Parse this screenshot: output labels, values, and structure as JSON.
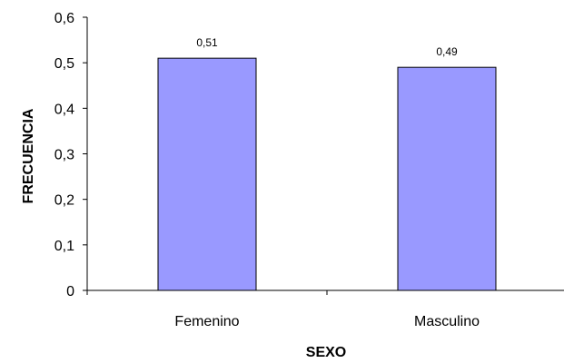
{
  "chart_data": {
    "type": "bar",
    "title": "",
    "xlabel": "SEXO",
    "ylabel": "FRECUENCIA",
    "categories": [
      "Femenino",
      "Masculino"
    ],
    "values": [
      0.51,
      0.49
    ],
    "data_labels": [
      "0,51",
      "0,49"
    ],
    "ylim": [
      0,
      0.6
    ],
    "y_ticks": [
      0,
      0.1,
      0.2,
      0.3,
      0.4,
      0.5,
      0.6
    ],
    "y_tick_labels": [
      "0",
      "0,1",
      "0,2",
      "0,3",
      "0,4",
      "0,5",
      "0,6"
    ],
    "grid": false,
    "legend": "none",
    "bar_color": "#9999ff",
    "bar_stroke": "#000000"
  }
}
